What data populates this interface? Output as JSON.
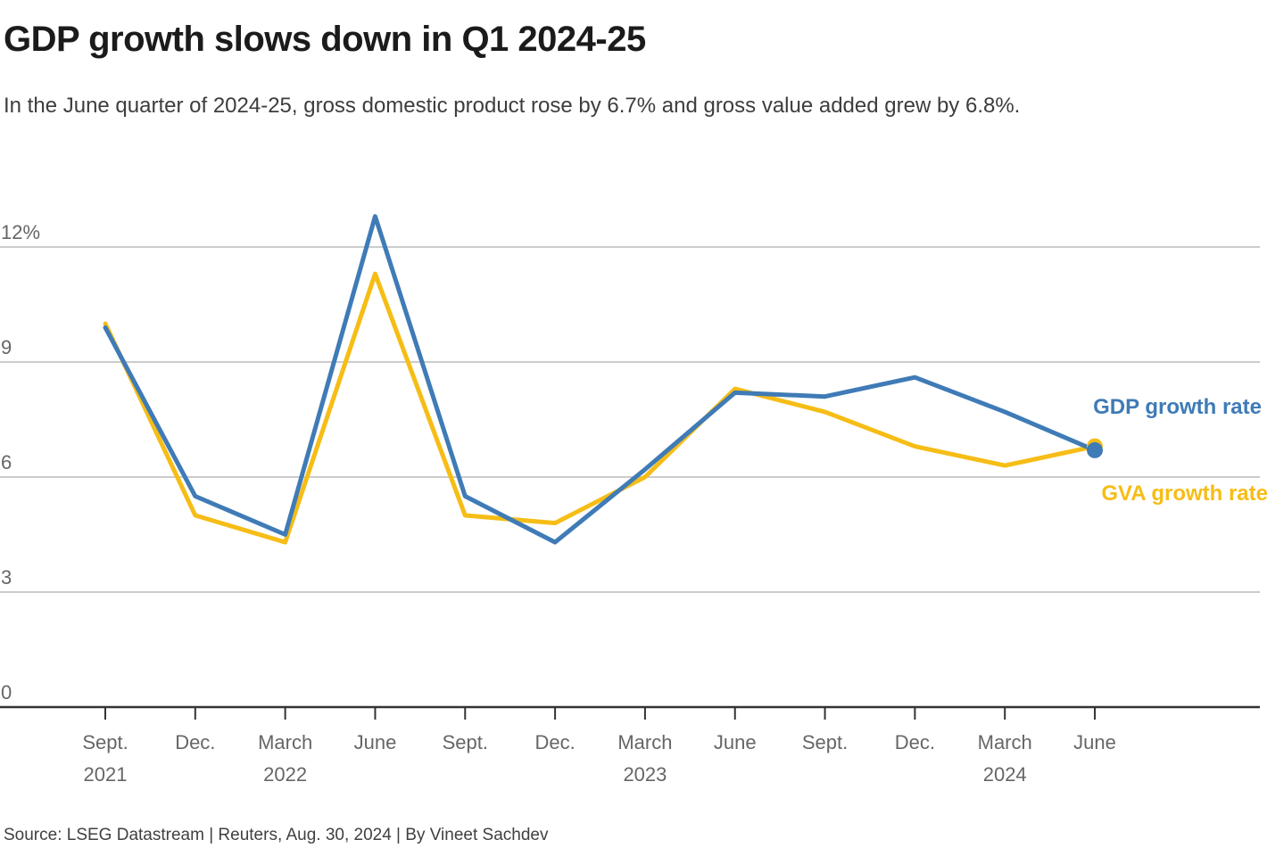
{
  "header": {
    "title": "GDP growth slows down in Q1 2024-25",
    "subtitle": "In the June quarter of 2024-25, gross domestic product rose by 6.7% and gross value added grew by 6.8%."
  },
  "footer": {
    "source": "Source: LSEG Datastream | Reuters, Aug. 30, 2024 | By Vineet Sachdev"
  },
  "colors": {
    "gdp_blue": "#3F7BB6",
    "gva_yellow": "#F6BD16",
    "gridline": "#cccccc",
    "axis": "#333333",
    "axis_label": "#666666",
    "title_text": "#1b1b1b",
    "subtitle_text": "#3d3d3d"
  },
  "chart_data": {
    "type": "line",
    "title": "GDP growth slows down in Q1 2024-25",
    "xlabel": "",
    "ylabel": "",
    "ylim": [
      0,
      13.2
    ],
    "grid": "horizontal",
    "legend_position": "inline-right",
    "categories": [
      [
        "Sept.",
        "2021"
      ],
      [
        "Dec.",
        ""
      ],
      [
        "March",
        "2022"
      ],
      [
        "June",
        ""
      ],
      [
        "Sept.",
        ""
      ],
      [
        "Dec.",
        ""
      ],
      [
        "March",
        "2023"
      ],
      [
        "June",
        ""
      ],
      [
        "Sept.",
        ""
      ],
      [
        "Dec.",
        ""
      ],
      [
        "March",
        "2024"
      ],
      [
        "June",
        ""
      ]
    ],
    "yticks": [
      {
        "value": 0,
        "label": "0"
      },
      {
        "value": 3,
        "label": "3"
      },
      {
        "value": 6,
        "label": "6"
      },
      {
        "value": 9,
        "label": "9"
      },
      {
        "value": 12,
        "label": "12%"
      }
    ],
    "series": [
      {
        "name": "GVA growth rate",
        "color": "#F6BD16",
        "end_dot": true,
        "values": [
          10.0,
          5.0,
          4.3,
          11.3,
          5.0,
          4.8,
          6.0,
          8.3,
          7.7,
          6.8,
          6.3,
          6.8
        ]
      },
      {
        "name": "GDP growth rate",
        "color": "#3F7BB6",
        "end_dot": true,
        "values": [
          9.9,
          5.5,
          4.5,
          12.8,
          5.5,
          4.3,
          6.2,
          8.2,
          8.1,
          8.6,
          7.7,
          6.7
        ]
      }
    ]
  }
}
